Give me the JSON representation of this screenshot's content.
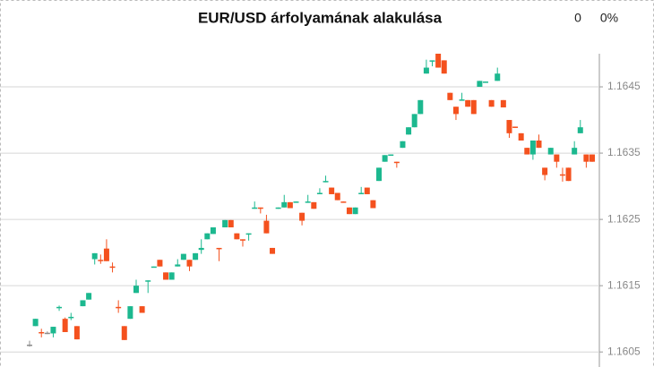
{
  "chart_data": {
    "type": "candlestick",
    "title": "EUR/USD árfolyamának alakulása",
    "change": "0",
    "change_percent": "0%",
    "open": [
      1.16061,
      1.16089,
      1.1608,
      1.16079,
      1.16078,
      1.16116,
      1.161,
      1.16101,
      1.16089,
      1.16119,
      1.16129,
      1.1619,
      1.16189,
      1.16206,
      1.16179,
      1.16118,
      1.16089,
      1.161,
      1.16139,
      1.16119,
      1.16157,
      1.16178,
      1.16189,
      1.1617,
      1.16159,
      1.16179,
      1.16189,
      1.16189,
      1.16189,
      1.16204,
      1.1622,
      1.16228,
      1.16207,
      1.16238,
      1.16249,
      1.16229,
      1.1622,
      1.16227,
      1.16266,
      1.16268,
      1.16248,
      1.16207,
      1.16266,
      1.16268,
      1.16276,
      1.16276,
      1.1626,
      1.16275,
      1.16276,
      1.16288,
      1.16306,
      1.16298,
      1.1629,
      1.16277,
      1.16268,
      1.16258,
      1.16288,
      1.16298,
      1.16279,
      1.16308,
      1.16337,
      1.16346,
      1.16337,
      1.16358,
      1.16378,
      1.16389,
      1.16409,
      1.1647,
      1.16488,
      1.165,
      1.1649,
      1.16441,
      1.1642,
      1.16429,
      1.1643,
      1.1643,
      1.1645,
      1.16457,
      1.1643,
      1.16459,
      1.1643,
      1.164,
      1.1639,
      1.1638,
      1.16358,
      1.16348,
      1.16369,
      1.16328,
      1.16348,
      1.16348,
      1.16318,
      1.16328,
      1.16348,
      1.1638,
      1.16348,
      1.16348
    ],
    "high": [
      1.16067,
      1.161,
      1.16085,
      1.16081,
      1.16088,
      1.1612,
      1.16102,
      1.16109,
      1.16089,
      1.16128,
      1.16139,
      1.16199,
      1.16197,
      1.1622,
      1.16185,
      1.16128,
      1.16089,
      1.16119,
      1.16159,
      1.16119,
      1.16158,
      1.16179,
      1.16189,
      1.1617,
      1.1617,
      1.1619,
      1.16198,
      1.16189,
      1.16199,
      1.1622,
      1.16229,
      1.16238,
      1.16207,
      1.16249,
      1.16249,
      1.16229,
      1.1622,
      1.16229,
      1.16277,
      1.16268,
      1.16257,
      1.16207,
      1.16268,
      1.16287,
      1.16276,
      1.16277,
      1.1626,
      1.16287,
      1.16276,
      1.16297,
      1.16316,
      1.16298,
      1.1629,
      1.16277,
      1.16268,
      1.16268,
      1.16299,
      1.16298,
      1.16279,
      1.16328,
      1.16347,
      1.16348,
      1.16337,
      1.16368,
      1.16389,
      1.16409,
      1.1643,
      1.16491,
      1.1649,
      1.165,
      1.1649,
      1.16441,
      1.1642,
      1.16441,
      1.1643,
      1.1643,
      1.16459,
      1.16458,
      1.1643,
      1.16479,
      1.1643,
      1.164,
      1.1639,
      1.1638,
      1.16358,
      1.16369,
      1.16378,
      1.16328,
      1.16358,
      1.16348,
      1.16328,
      1.16328,
      1.16368,
      1.164,
      1.16348,
      1.16348
    ],
    "low": [
      1.16058,
      1.16089,
      1.16072,
      1.16077,
      1.16072,
      1.16112,
      1.1608,
      1.16098,
      1.16069,
      1.16119,
      1.16129,
      1.16182,
      1.16183,
      1.16187,
      1.1617,
      1.16109,
      1.16068,
      1.161,
      1.16139,
      1.16109,
      1.16139,
      1.16178,
      1.16179,
      1.16159,
      1.16159,
      1.16179,
      1.16189,
      1.16172,
      1.16189,
      1.16198,
      1.1622,
      1.16228,
      1.16187,
      1.16238,
      1.16238,
      1.1622,
      1.16209,
      1.16218,
      1.16266,
      1.16259,
      1.16229,
      1.16198,
      1.16266,
      1.16268,
      1.16267,
      1.16276,
      1.16241,
      1.16275,
      1.16266,
      1.16288,
      1.16306,
      1.16288,
      1.16279,
      1.16276,
      1.16258,
      1.16258,
      1.16288,
      1.16288,
      1.16267,
      1.16308,
      1.16337,
      1.16346,
      1.16328,
      1.16358,
      1.16378,
      1.16389,
      1.16409,
      1.1647,
      1.16481,
      1.16479,
      1.1647,
      1.1643,
      1.164,
      1.16429,
      1.1642,
      1.16409,
      1.1645,
      1.16457,
      1.1642,
      1.16459,
      1.16419,
      1.16373,
      1.16388,
      1.16369,
      1.16348,
      1.1634,
      1.16358,
      1.16309,
      1.16348,
      1.16328,
      1.16307,
      1.16308,
      1.16348,
      1.1638,
      1.16328,
      1.16337
    ],
    "close": [
      1.16061,
      1.161,
      1.16078,
      1.16079,
      1.16088,
      1.16118,
      1.1608,
      1.16103,
      1.16069,
      1.16128,
      1.16139,
      1.16199,
      1.16188,
      1.16187,
      1.16177,
      1.16116,
      1.16068,
      1.16119,
      1.1615,
      1.16109,
      1.16158,
      1.16179,
      1.16179,
      1.16159,
      1.1617,
      1.16182,
      1.16198,
      1.16179,
      1.16199,
      1.16207,
      1.16229,
      1.16238,
      1.16205,
      1.16249,
      1.16238,
      1.1622,
      1.16218,
      1.16229,
      1.16268,
      1.16266,
      1.16229,
      1.16198,
      1.16268,
      1.16276,
      1.16267,
      1.16277,
      1.16248,
      1.16277,
      1.16266,
      1.1629,
      1.16308,
      1.16288,
      1.16279,
      1.16276,
      1.16258,
      1.16268,
      1.1629,
      1.16288,
      1.16267,
      1.16328,
      1.16347,
      1.16348,
      1.16335,
      1.16368,
      1.16389,
      1.16409,
      1.1643,
      1.16479,
      1.1649,
      1.16479,
      1.1647,
      1.1643,
      1.16409,
      1.16431,
      1.1642,
      1.16409,
      1.16459,
      1.16458,
      1.1642,
      1.1647,
      1.16419,
      1.1638,
      1.16388,
      1.16369,
      1.16348,
      1.16369,
      1.16358,
      1.16317,
      1.16358,
      1.16337,
      1.16316,
      1.16308,
      1.16358,
      1.16389,
      1.16337,
      1.16337
    ],
    "up_color": "#1cb88f",
    "down_color": "#f4511e",
    "flat_color": "#8c8c8c",
    "ylim": [
      1.1603,
      1.165
    ],
    "yticks": [
      1.1605,
      1.1615,
      1.1625,
      1.1635,
      1.1645
    ],
    "grid": true
  }
}
